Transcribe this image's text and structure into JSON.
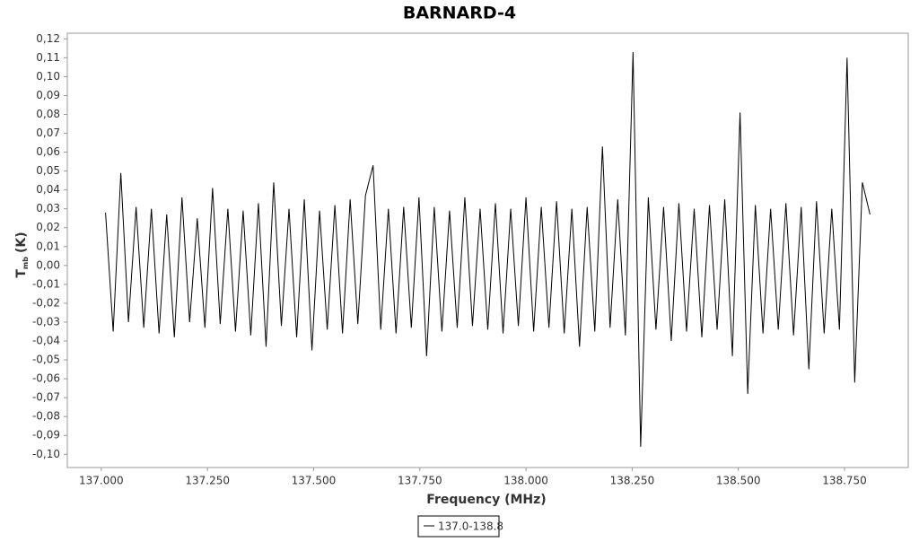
{
  "chart_data": {
    "type": "line",
    "title": "BARNARD-4",
    "xlabel": "Frequency (MHz)",
    "ylabel": "T",
    "ylabel_subscript": "mb",
    "ylabel_unit": "(K)",
    "xlim": [
      136.92,
      138.9
    ],
    "ylim": [
      -0.107,
      0.123
    ],
    "xticks": [
      {
        "value": 137,
        "label": "137.000"
      },
      {
        "value": 137.25,
        "label": "137.250"
      },
      {
        "value": 137.5,
        "label": "137.500"
      },
      {
        "value": 137.75,
        "label": "137.750"
      },
      {
        "value": 138,
        "label": "138.000"
      },
      {
        "value": 138.25,
        "label": "138.250"
      },
      {
        "value": 138.5,
        "label": "138.500"
      },
      {
        "value": 138.75,
        "label": "138.750"
      }
    ],
    "yticks": [
      {
        "value": 0.12,
        "label": "0,12"
      },
      {
        "value": 0.11,
        "label": "0,11"
      },
      {
        "value": 0.1,
        "label": "0,10"
      },
      {
        "value": 0.09,
        "label": "0,09"
      },
      {
        "value": 0.08,
        "label": "0,08"
      },
      {
        "value": 0.07,
        "label": "0,07"
      },
      {
        "value": 0.06,
        "label": "0,06"
      },
      {
        "value": 0.05,
        "label": "0,05"
      },
      {
        "value": 0.04,
        "label": "0,04"
      },
      {
        "value": 0.03,
        "label": "0,03"
      },
      {
        "value": 0.02,
        "label": "0,02"
      },
      {
        "value": 0.01,
        "label": "0,01"
      },
      {
        "value": 0,
        "label": "0,00"
      },
      {
        "value": -0.01,
        "label": "-0,01"
      },
      {
        "value": -0.02,
        "label": "-0,02"
      },
      {
        "value": -0.03,
        "label": "-0,03"
      },
      {
        "value": -0.04,
        "label": "-0,04"
      },
      {
        "value": -0.05,
        "label": "-0,05"
      },
      {
        "value": -0.06,
        "label": "-0,06"
      },
      {
        "value": -0.07,
        "label": "-0,07"
      },
      {
        "value": -0.08,
        "label": "-0,08"
      },
      {
        "value": -0.09,
        "label": "-0,09"
      },
      {
        "value": -0.1,
        "label": "-0,10"
      }
    ],
    "grid": false,
    "x": [
      137.01,
      137.028,
      137.046,
      137.064,
      137.082,
      137.1,
      137.118,
      137.136,
      137.154,
      137.172,
      137.19,
      137.208,
      137.226,
      137.244,
      137.262,
      137.28,
      137.298,
      137.316,
      137.334,
      137.352,
      137.37,
      137.388,
      137.406,
      137.424,
      137.442,
      137.46,
      137.478,
      137.496,
      137.514,
      137.532,
      137.55,
      137.568,
      137.586,
      137.604,
      137.622,
      137.64,
      137.658,
      137.676,
      137.694,
      137.712,
      137.73,
      137.748,
      137.766,
      137.784,
      137.802,
      137.82,
      137.838,
      137.856,
      137.874,
      137.892,
      137.91,
      137.928,
      137.946,
      137.964,
      137.982,
      138,
      138.018,
      138.036,
      138.054,
      138.072,
      138.09,
      138.108,
      138.126,
      138.144,
      138.162,
      138.18,
      138.198,
      138.216,
      138.234,
      138.252,
      138.27,
      138.288,
      138.306,
      138.324,
      138.342,
      138.36,
      138.378,
      138.396,
      138.414,
      138.432,
      138.45,
      138.468,
      138.486,
      138.504,
      138.522,
      138.54,
      138.558,
      138.576,
      138.594,
      138.612,
      138.63,
      138.648,
      138.666,
      138.684,
      138.702,
      138.72,
      138.738,
      138.756,
      138.774,
      138.792,
      138.81
    ],
    "series": [
      {
        "name": "137.0-138.8",
        "color": "#000000",
        "values": [
          0.028,
          -0.035,
          0.049,
          -0.03,
          0.031,
          -0.033,
          0.03,
          -0.036,
          0.027,
          -0.038,
          0.036,
          -0.03,
          0.025,
          -0.033,
          0.041,
          -0.031,
          0.03,
          -0.035,
          0.029,
          -0.037,
          0.033,
          -0.043,
          0.044,
          -0.032,
          0.03,
          -0.038,
          0.035,
          -0.045,
          0.029,
          -0.034,
          0.032,
          -0.036,
          0.035,
          -0.031,
          0.037,
          0.053,
          -0.034,
          0.03,
          -0.036,
          0.031,
          -0.033,
          0.036,
          -0.048,
          0.031,
          -0.035,
          0.029,
          -0.033,
          0.036,
          -0.032,
          0.03,
          -0.034,
          0.033,
          -0.036,
          0.03,
          -0.032,
          0.036,
          -0.035,
          0.031,
          -0.033,
          0.034,
          -0.036,
          0.03,
          -0.043,
          0.031,
          -0.035,
          0.063,
          -0.033,
          0.035,
          -0.037,
          0.113,
          -0.096,
          0.036,
          -0.034,
          0.031,
          -0.04,
          0.033,
          -0.035,
          0.03,
          -0.038,
          0.032,
          -0.034,
          0.035,
          -0.048,
          0.081,
          -0.068,
          0.032,
          -0.036,
          0.03,
          -0.034,
          0.033,
          -0.037,
          0.031,
          -0.055,
          0.034,
          -0.036,
          0.03,
          -0.034,
          0.11,
          -0.062,
          0.044,
          0.027
        ]
      }
    ]
  }
}
